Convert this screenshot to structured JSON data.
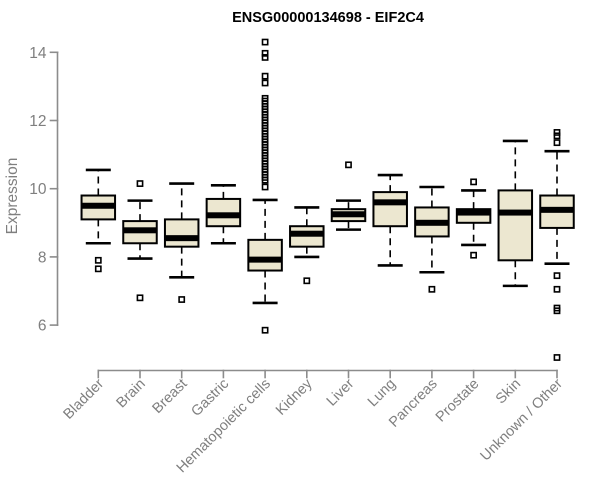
{
  "chart_data": {
    "type": "boxplot",
    "title": "ENSG00000134698 - EIF2C4",
    "xlabel": "",
    "ylabel": "Expression",
    "yticks": [
      6,
      8,
      10,
      12,
      14
    ],
    "ylim": [
      5.0,
      14.4
    ],
    "grid": false,
    "legend": "none",
    "colors": {
      "box_fill": "#ece7d0",
      "box_stroke": "#000000",
      "axis_line": "#8c8c8c",
      "axis_text": "#7f7f7f",
      "title_text": "#000000",
      "background": "#ffffff"
    },
    "boxes": [
      {
        "label": "Bladder",
        "whisker_low": 8.4,
        "q1": 9.1,
        "median": 9.5,
        "q3": 9.8,
        "whisker_high": 10.55,
        "outliers": [
          7.9,
          7.65
        ]
      },
      {
        "label": "Brain",
        "whisker_low": 7.95,
        "q1": 8.4,
        "median": 8.78,
        "q3": 9.05,
        "whisker_high": 9.65,
        "outliers": [
          10.15,
          6.8
        ]
      },
      {
        "label": "Breast",
        "whisker_low": 7.4,
        "q1": 8.3,
        "median": 8.55,
        "q3": 9.1,
        "whisker_high": 10.15,
        "outliers": [
          6.75
        ]
      },
      {
        "label": "Gastric",
        "whisker_low": 8.4,
        "q1": 8.9,
        "median": 9.22,
        "q3": 9.7,
        "whisker_high": 10.1,
        "outliers": []
      },
      {
        "label": "Hematopoietic cells",
        "whisker_low": 6.65,
        "q1": 7.6,
        "median": 7.92,
        "q3": 8.5,
        "whisker_high": 9.67,
        "outliers": [
          14.3,
          13.97,
          13.85,
          13.3,
          13.1,
          12.65,
          12.57,
          12.49,
          12.41,
          12.33,
          12.25,
          12.17,
          12.09,
          12.01,
          11.93,
          11.85,
          11.77,
          11.69,
          11.61,
          11.53,
          11.45,
          11.37,
          11.29,
          11.21,
          11.13,
          11.05,
          10.97,
          10.89,
          10.81,
          10.73,
          10.65,
          10.57,
          10.49,
          10.41,
          10.33,
          10.25,
          10.05,
          5.85
        ]
      },
      {
        "label": "Kidney",
        "whisker_low": 8.0,
        "q1": 8.3,
        "median": 8.68,
        "q3": 8.9,
        "whisker_high": 9.45,
        "outliers": [
          7.3
        ]
      },
      {
        "label": "Liver",
        "whisker_low": 8.8,
        "q1": 9.05,
        "median": 9.25,
        "q3": 9.4,
        "whisker_high": 9.65,
        "outliers": [
          10.7
        ]
      },
      {
        "label": "Lung",
        "whisker_low": 7.75,
        "q1": 8.9,
        "median": 9.6,
        "q3": 9.9,
        "whisker_high": 10.4,
        "outliers": []
      },
      {
        "label": "Pancreas",
        "whisker_low": 7.55,
        "q1": 8.6,
        "median": 9.0,
        "q3": 9.45,
        "whisker_high": 10.05,
        "outliers": [
          7.05
        ]
      },
      {
        "label": "Prostate",
        "whisker_low": 8.35,
        "q1": 9.0,
        "median": 9.3,
        "q3": 9.4,
        "whisker_high": 9.95,
        "outliers": [
          10.2,
          8.05
        ]
      },
      {
        "label": "Skin",
        "whisker_low": 7.15,
        "q1": 7.9,
        "median": 9.3,
        "q3": 9.95,
        "whisker_high": 11.4,
        "outliers": []
      },
      {
        "label": "Unknown / Other",
        "whisker_low": 7.8,
        "q1": 8.85,
        "median": 9.38,
        "q3": 9.8,
        "whisker_high": 11.1,
        "outliers": [
          11.65,
          11.55,
          11.35,
          7.45,
          7.05,
          6.5,
          6.42,
          5.05
        ]
      }
    ]
  }
}
